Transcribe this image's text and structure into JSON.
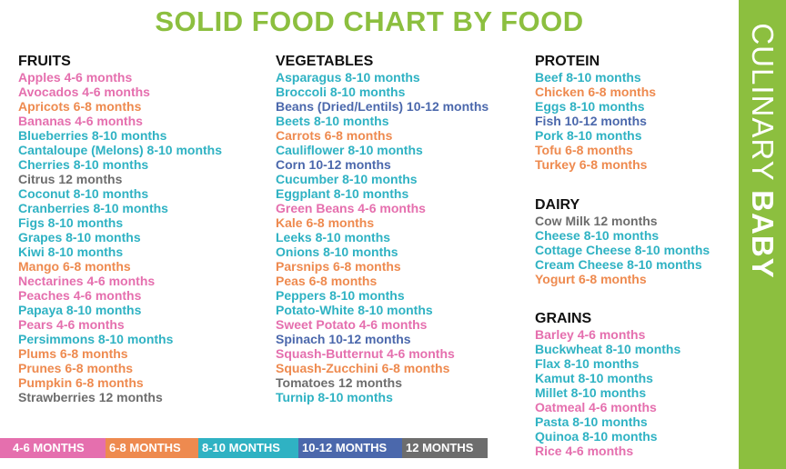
{
  "title": "SOLID FOOD CHART BY FOOD",
  "brand": {
    "word1": "CULINARY",
    "word2": "BABY"
  },
  "colors": {
    "pink": "#e56fae",
    "orange": "#ee8a4f",
    "teal": "#2fb2c3",
    "blue": "#4b68ac",
    "gray": "#6d6d6d",
    "green": "#8cbf3f"
  },
  "sections": {
    "fruits": {
      "heading": "FRUITS",
      "items": [
        {
          "text": "Apples 4-6 months",
          "color": "pink"
        },
        {
          "text": "Avocados 4-6 months",
          "color": "pink"
        },
        {
          "text": "Apricots 6-8 months",
          "color": "orange"
        },
        {
          "text": "Bananas 4-6 months",
          "color": "pink"
        },
        {
          "text": "Blueberries 8-10 months",
          "color": "teal"
        },
        {
          "text": "Cantaloupe (Melons) 8-10 months",
          "color": "teal"
        },
        {
          "text": "Cherries 8-10 months",
          "color": "teal"
        },
        {
          "text": "Citrus 12 months",
          "color": "gray"
        },
        {
          "text": "Coconut 8-10 months",
          "color": "teal"
        },
        {
          "text": "Cranberries 8-10 months",
          "color": "teal"
        },
        {
          "text": "Figs 8-10 months",
          "color": "teal"
        },
        {
          "text": "Grapes 8-10 months",
          "color": "teal"
        },
        {
          "text": "Kiwi 8-10 months",
          "color": "teal"
        },
        {
          "text": "Mango 6-8 months",
          "color": "orange"
        },
        {
          "text": "Nectarines 4-6 months",
          "color": "pink"
        },
        {
          "text": "Peaches 4-6 months",
          "color": "pink"
        },
        {
          "text": "Papaya 8-10 months",
          "color": "teal"
        },
        {
          "text": "Pears 4-6 months",
          "color": "pink"
        },
        {
          "text": "Persimmons 8-10 months",
          "color": "teal"
        },
        {
          "text": "Plums 6-8 months",
          "color": "orange"
        },
        {
          "text": "Prunes 6-8 months",
          "color": "orange"
        },
        {
          "text": "Pumpkin 6-8 months",
          "color": "orange"
        },
        {
          "text": "Strawberries 12 months",
          "color": "gray"
        }
      ]
    },
    "vegetables": {
      "heading": "VEGETABLES",
      "items": [
        {
          "text": "Asparagus 8-10 months",
          "color": "teal"
        },
        {
          "text": "Broccoli 8-10 months",
          "color": "teal"
        },
        {
          "text": "Beans (Dried/Lentils) 10-12 months",
          "color": "blue"
        },
        {
          "text": "Beets 8-10 months",
          "color": "teal"
        },
        {
          "text": "Carrots 6-8 months",
          "color": "orange"
        },
        {
          "text": "Cauliflower 8-10 months",
          "color": "teal"
        },
        {
          "text": "Corn 10-12 months",
          "color": "blue"
        },
        {
          "text": "Cucumber 8-10 months",
          "color": "teal"
        },
        {
          "text": "Eggplant 8-10 months",
          "color": "teal"
        },
        {
          "text": "Green Beans 4-6 months",
          "color": "pink"
        },
        {
          "text": "Kale 6-8 months",
          "color": "orange"
        },
        {
          "text": "Leeks 8-10 months",
          "color": "teal"
        },
        {
          "text": "Onions 8-10 months",
          "color": "teal"
        },
        {
          "text": "Parsnips 6-8 months",
          "color": "orange"
        },
        {
          "text": "Peas 6-8 months",
          "color": "orange"
        },
        {
          "text": "Peppers 8-10 months",
          "color": "teal"
        },
        {
          "text": "Potato-White 8-10 months",
          "color": "teal"
        },
        {
          "text": "Sweet Potato 4-6 months",
          "color": "pink"
        },
        {
          "text": "Spinach 10-12 months",
          "color": "blue"
        },
        {
          "text": "Squash-Butternut 4-6 months",
          "color": "pink"
        },
        {
          "text": "Squash-Zucchini 6-8 months",
          "color": "orange"
        },
        {
          "text": "Tomatoes 12 months",
          "color": "gray"
        },
        {
          "text": "Turnip 8-10 months",
          "color": "teal"
        }
      ]
    },
    "protein": {
      "heading": "PROTEIN",
      "items": [
        {
          "text": "Beef 8-10 months",
          "color": "teal"
        },
        {
          "text": "Chicken 6-8 months",
          "color": "orange"
        },
        {
          "text": "Eggs 8-10 months",
          "color": "teal"
        },
        {
          "text": "Fish 10-12 months",
          "color": "blue"
        },
        {
          "text": "Pork 8-10 months",
          "color": "teal"
        },
        {
          "text": "Tofu 6-8 months",
          "color": "orange"
        },
        {
          "text": "Turkey 6-8 months",
          "color": "orange"
        }
      ]
    },
    "dairy": {
      "heading": "DAIRY",
      "items": [
        {
          "text": "Cow Milk 12 months",
          "color": "gray"
        },
        {
          "text": "Cheese 8-10 months",
          "color": "teal"
        },
        {
          "text": "Cottage Cheese 8-10 months",
          "color": "teal"
        },
        {
          "text": "Cream Cheese 8-10 months",
          "color": "teal"
        },
        {
          "text": "Yogurt 6-8 months",
          "color": "orange"
        }
      ]
    },
    "grains": {
      "heading": "GRAINS",
      "items": [
        {
          "text": "Barley 4-6 months",
          "color": "pink"
        },
        {
          "text": "Buckwheat 8-10 months",
          "color": "teal"
        },
        {
          "text": "Flax 8-10 months",
          "color": "teal"
        },
        {
          "text": "Kamut 8-10 months",
          "color": "teal"
        },
        {
          "text": "Millet 8-10 months",
          "color": "teal"
        },
        {
          "text": "Oatmeal 4-6 months",
          "color": "pink"
        },
        {
          "text": "Pasta 8-10 months",
          "color": "teal"
        },
        {
          "text": "Quinoa 8-10 months",
          "color": "teal"
        },
        {
          "text": "Rice 4-6 months",
          "color": "pink"
        }
      ]
    }
  },
  "legend": [
    {
      "label": "4-6 MONTHS",
      "color": "pink"
    },
    {
      "label": "6-8 MONTHS",
      "color": "orange"
    },
    {
      "label": "8-10 MONTHS",
      "color": "teal"
    },
    {
      "label": "10-12 MONTHS",
      "color": "blue"
    },
    {
      "label": "12 MONTHS",
      "color": "gray"
    }
  ]
}
